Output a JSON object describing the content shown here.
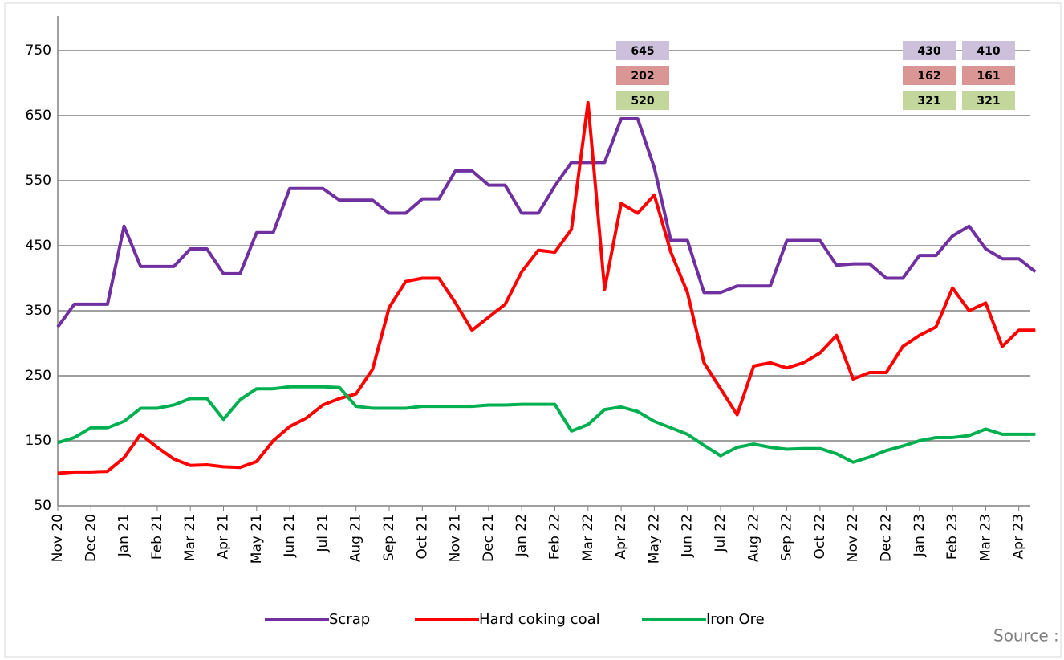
{
  "chart_data": {
    "type": "line",
    "categories": [
      "Nov 20",
      null,
      "Dec 20",
      null,
      "Jan 21",
      null,
      "Feb 21",
      null,
      "Mar 21",
      null,
      "Apr 21",
      null,
      "May 21",
      null,
      "Jun 21",
      null,
      "Jul 21",
      null,
      "Aug 21",
      null,
      "Sep 21",
      null,
      "Oct 21",
      null,
      "Nov 21",
      null,
      "Dec 21",
      null,
      "Jan 22",
      null,
      "Feb 22",
      null,
      "Mar 22",
      null,
      "Apr 22",
      null,
      "May 22",
      null,
      "Jun 22",
      null,
      "Jul 22",
      null,
      "Aug 22",
      null,
      "Sep 22",
      null,
      "Oct 22",
      null,
      "Nov 22",
      null,
      "Dec 22",
      null,
      "Jan 23",
      null,
      "Feb 23",
      null,
      "Mar 23",
      null,
      "Apr 23",
      null
    ],
    "series": [
      {
        "name": "Scrap",
        "color": "#7030a0",
        "box_color": "#ccc0da",
        "values": [
          325,
          360,
          360,
          360,
          480,
          418,
          418,
          418,
          445,
          445,
          407,
          407,
          470,
          470,
          538,
          538,
          538,
          520,
          520,
          520,
          500,
          500,
          522,
          522,
          565,
          565,
          543,
          543,
          500,
          500,
          542,
          578,
          578,
          578,
          645,
          645,
          570,
          458,
          458,
          378,
          378,
          388,
          388,
          388,
          458,
          458,
          458,
          420,
          422,
          422,
          400,
          400,
          435,
          435,
          465,
          480,
          445,
          430,
          430,
          410
        ]
      },
      {
        "name": "Hard coking coal",
        "color": "#ff0000",
        "box_color": "#d99694",
        "values": [
          100,
          102,
          102,
          103,
          124,
          160,
          140,
          122,
          112,
          113,
          110,
          109,
          118,
          150,
          172,
          185,
          205,
          215,
          222,
          260,
          355,
          395,
          400,
          400,
          362,
          320,
          340,
          360,
          410,
          443,
          440,
          475,
          670,
          383,
          515,
          500,
          528,
          440,
          378,
          270,
          230,
          190,
          265,
          270,
          262,
          270,
          285,
          312,
          245,
          255,
          255,
          295,
          312,
          325,
          385,
          350,
          362,
          295,
          320,
          320
        ]
      },
      {
        "name": "Iron Ore",
        "color": "#00b050",
        "box_color": "#c3d69b",
        "values": [
          147,
          155,
          170,
          170,
          180,
          200,
          200,
          205,
          215,
          215,
          183,
          213,
          230,
          230,
          233,
          233,
          233,
          232,
          203,
          200,
          200,
          200,
          203,
          203,
          203,
          203,
          205,
          205,
          206,
          206,
          206,
          165,
          175,
          198,
          202,
          195,
          180,
          170,
          160,
          143,
          127,
          140,
          145,
          140,
          137,
          138,
          138,
          130,
          117,
          125,
          135,
          142,
          150,
          155,
          155,
          158,
          168,
          160,
          160,
          160
        ]
      }
    ],
    "annotations": [
      {
        "values": [
          645,
          202,
          520
        ]
      },
      {
        "values": [
          430,
          162,
          321
        ]
      },
      {
        "values": [
          410,
          161,
          321
        ]
      }
    ],
    "ylim": [
      50,
      750
    ],
    "yticks": [
      50,
      150,
      250,
      350,
      450,
      550,
      650,
      750
    ],
    "grid": true,
    "source": "Source :"
  }
}
